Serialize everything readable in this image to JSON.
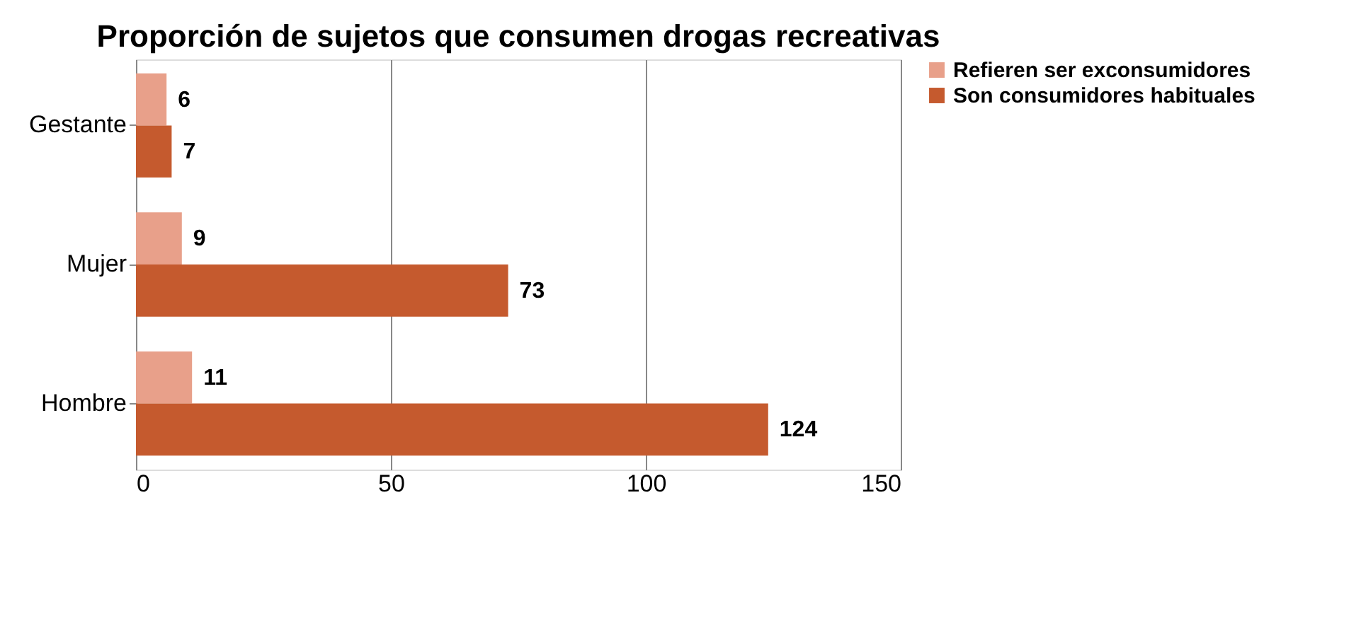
{
  "chart_data": {
    "type": "bar",
    "orientation": "horizontal",
    "title": "Proporción de sujetos que consumen drogas recreativas",
    "categories": [
      "Gestante",
      "Mujer",
      "Hombre"
    ],
    "series": [
      {
        "name": "Refieren ser exconsumidores",
        "color": "#e8a08a",
        "values": [
          6,
          9,
          11
        ]
      },
      {
        "name": "Son consumidores habituales",
        "color": "#c55a2e",
        "values": [
          7,
          73,
          124
        ]
      }
    ],
    "xlim": [
      0,
      150
    ],
    "xticks": [
      0,
      50,
      100,
      150
    ],
    "grid": "x",
    "legend": "right",
    "data_labels": true
  }
}
